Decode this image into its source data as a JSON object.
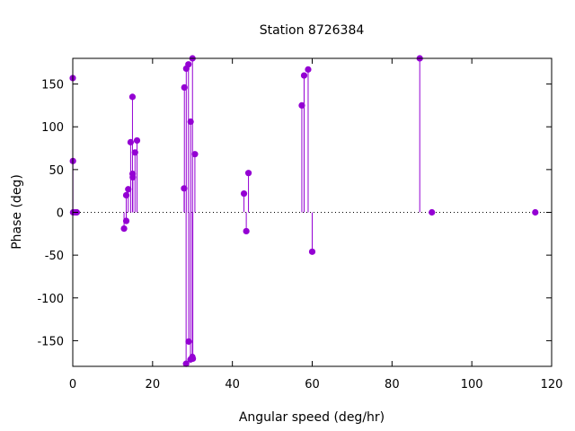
{
  "chart_data": {
    "type": "scatter",
    "style": "impulse-stem",
    "title": "Station 8726384",
    "xlabel": "Angular speed (deg/hr)",
    "ylabel": "Phase (deg)",
    "xlim": [
      0,
      120
    ],
    "ylim": [
      -180,
      180
    ],
    "xticks": [
      0,
      20,
      40,
      60,
      80,
      100,
      120
    ],
    "yticks": [
      -150,
      -100,
      -50,
      0,
      50,
      100,
      150
    ],
    "xtick_labels": [
      "0",
      "20",
      "40",
      "60",
      "80",
      "100",
      "120"
    ],
    "ytick_labels": [
      "-150",
      "-100",
      "-50",
      "0",
      "50",
      "100",
      "150"
    ],
    "grid": false,
    "zero_line": true,
    "color": "#9400d3",
    "points": [
      {
        "x": 0.0,
        "y": 157
      },
      {
        "x": 0.04,
        "y": 60
      },
      {
        "x": 0.08,
        "y": 0
      },
      {
        "x": 0.55,
        "y": 0
      },
      {
        "x": 1.0,
        "y": 0
      },
      {
        "x": 12.85,
        "y": -19
      },
      {
        "x": 13.4,
        "y": -10
      },
      {
        "x": 13.4,
        "y": 20
      },
      {
        "x": 13.9,
        "y": 27
      },
      {
        "x": 14.5,
        "y": 82
      },
      {
        "x": 14.96,
        "y": 135
      },
      {
        "x": 15.0,
        "y": 45
      },
      {
        "x": 15.04,
        "y": 41
      },
      {
        "x": 15.6,
        "y": 70
      },
      {
        "x": 16.1,
        "y": 84
      },
      {
        "x": 27.9,
        "y": 28
      },
      {
        "x": 27.97,
        "y": 146
      },
      {
        "x": 28.4,
        "y": -177
      },
      {
        "x": 28.44,
        "y": 168
      },
      {
        "x": 28.99,
        "y": 173
      },
      {
        "x": 29.05,
        "y": -151
      },
      {
        "x": 29.5,
        "y": -172
      },
      {
        "x": 29.53,
        "y": 106
      },
      {
        "x": 29.96,
        "y": -169
      },
      {
        "x": 30.0,
        "y": 180
      },
      {
        "x": 30.08,
        "y": -171
      },
      {
        "x": 30.6,
        "y": 68
      },
      {
        "x": 42.9,
        "y": 22
      },
      {
        "x": 43.48,
        "y": -22
      },
      {
        "x": 44.03,
        "y": 46
      },
      {
        "x": 57.4,
        "y": 125
      },
      {
        "x": 57.97,
        "y": 160
      },
      {
        "x": 58.98,
        "y": 167
      },
      {
        "x": 60.0,
        "y": -46
      },
      {
        "x": 86.95,
        "y": 180
      },
      {
        "x": 89.99,
        "y": 0
      },
      {
        "x": 115.9,
        "y": 0
      }
    ]
  }
}
